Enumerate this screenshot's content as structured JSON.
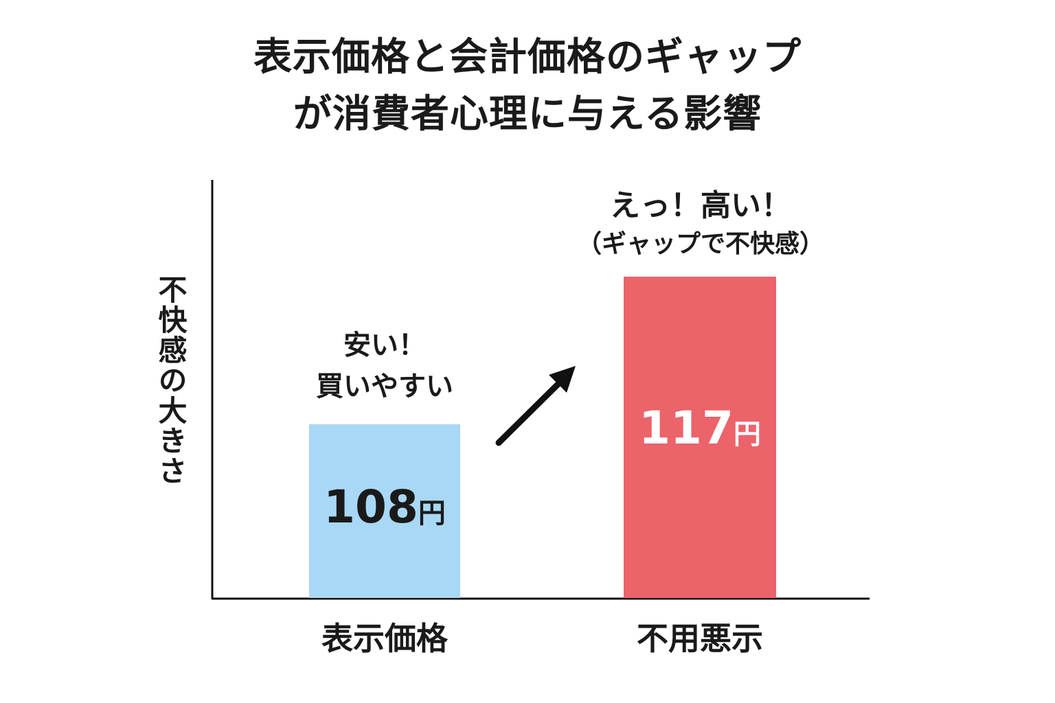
{
  "title_lines": [
    "表示価格と会計価格のギャップ",
    "が消費者心理に与える影響"
  ],
  "chart_data": {
    "type": "bar",
    "title": "表示価格と会計価格のギャップが消費者心理に与える影響",
    "ylabel": "不快感の大きさ",
    "xlabel": "",
    "categories": [
      "表示価格",
      "不用悪示"
    ],
    "values": [
      108,
      117
    ],
    "value_labels": [
      {
        "number": "108",
        "unit": "円"
      },
      {
        "number": "117",
        "unit": "円"
      }
    ],
    "colors": [
      "#a8d8f5",
      "#ec636a"
    ],
    "annotations": [
      {
        "category": "表示価格",
        "lines": [
          "安い！",
          "買いやすい"
        ]
      },
      {
        "category": "不用悪示",
        "lines": [
          "えっ！高い！",
          "（ギャップで不快感）"
        ]
      }
    ],
    "grid": false,
    "legend": "none"
  }
}
